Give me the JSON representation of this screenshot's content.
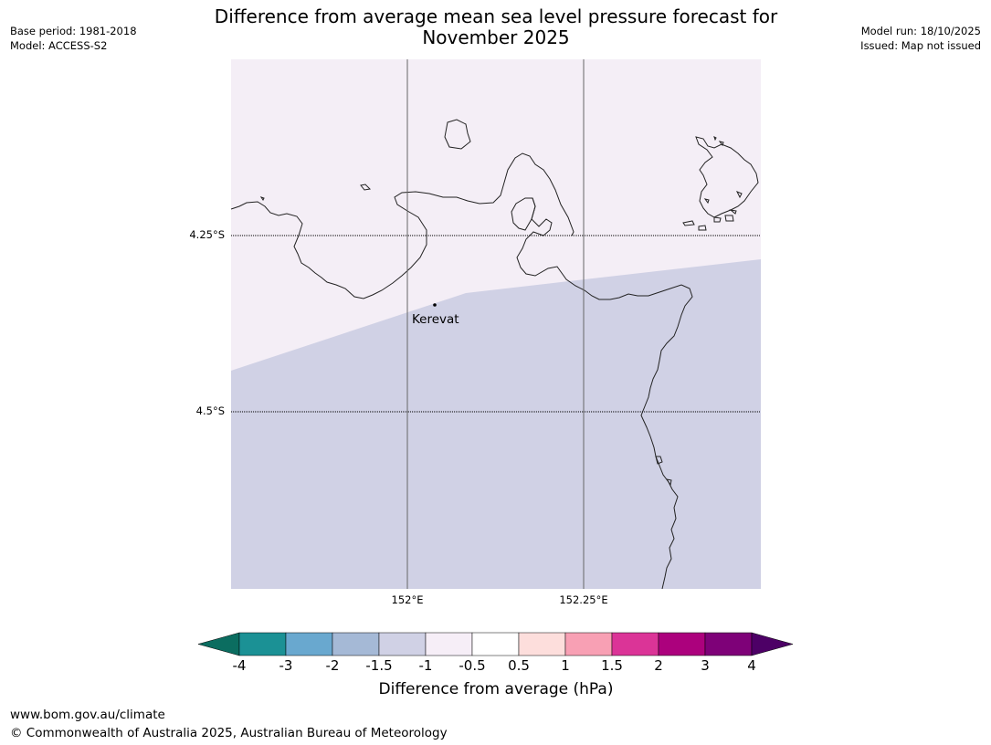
{
  "title": {
    "line1": "Difference from average mean sea level pressure forecast for",
    "line2": "November 2025"
  },
  "meta": {
    "base_period": "Base period: 1981-2018",
    "model": "Model: ACCESS-S2",
    "model_run": "Model run: 18/10/2025",
    "issued": "Issued: Map not issued"
  },
  "map": {
    "lat_labels": [
      "4.25°S",
      "4.5°S"
    ],
    "lon_labels": [
      "152°E",
      "152.25°E"
    ],
    "place_marker": "Kerevat",
    "colors": {
      "north_region": "#f4eef6",
      "south_region": "#d0d1e5",
      "coast": "#222222"
    }
  },
  "colorbar": {
    "title": "Difference from average (hPa)",
    "ticks": [
      "-4",
      "-3",
      "-2",
      "-1.5",
      "-1",
      "-0.5",
      "0.5",
      "1",
      "1.5",
      "2",
      "3",
      "4"
    ],
    "colors": [
      "#1b9195",
      "#69a8cf",
      "#a5b9d6",
      "#d0d1e5",
      "#f6eef7",
      "#ffffff",
      "#fddedc",
      "#f8a0b4",
      "#db3497",
      "#ac017d",
      "#7e0178"
    ],
    "under_color": "#0b6d60",
    "over_color": "#4d0066"
  },
  "footer": {
    "url": "www.bom.gov.au/climate",
    "copyright": "© Commonwealth of Australia 2025, Australian Bureau of Meteorology"
  }
}
